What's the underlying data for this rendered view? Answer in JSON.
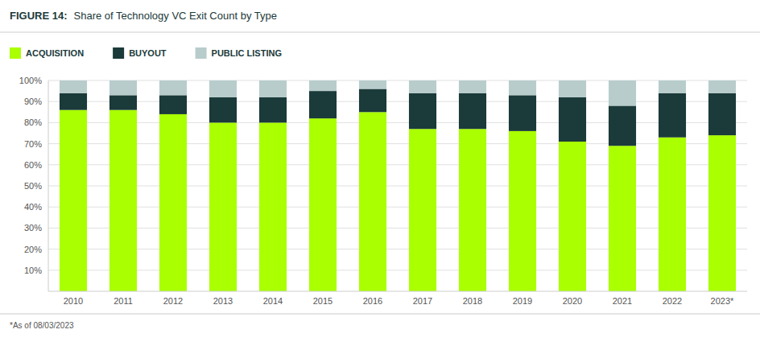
{
  "chart_data": {
    "type": "bar",
    "stacked": true,
    "title": "FIGURE 14:",
    "subtitle": "Share of Technology VC Exit Count by Type",
    "annotations": [
      "*As of 08/03/2023"
    ],
    "categories": [
      "2010",
      "2011",
      "2012",
      "2013",
      "2014",
      "2015",
      "2016",
      "2017",
      "2018",
      "2019",
      "2020",
      "2021",
      "2022",
      "2023*"
    ],
    "series": [
      {
        "name": "ACQUISITION",
        "color": "#aaff00",
        "values": [
          86,
          86,
          84,
          80,
          80,
          82,
          85,
          77,
          77,
          76,
          71,
          69,
          73,
          74
        ]
      },
      {
        "name": "BUYOUT",
        "color": "#1b3a3a",
        "values": [
          8,
          7,
          9,
          12,
          12,
          13,
          11,
          17,
          17,
          17,
          21,
          19,
          21,
          20
        ]
      },
      {
        "name": "PUBLIC LISTING",
        "color": "#b8cccc",
        "values": [
          6,
          7,
          7,
          8,
          8,
          5,
          4,
          6,
          6,
          7,
          8,
          12,
          6,
          6
        ]
      }
    ],
    "ylim": [
      0,
      100
    ],
    "yticks": [
      {
        "value": 10,
        "label": "10%"
      },
      {
        "value": 20,
        "label": "20%"
      },
      {
        "value": 30,
        "label": "30%"
      },
      {
        "value": 40,
        "label": "40%"
      },
      {
        "value": 50,
        "label": "50%"
      },
      {
        "value": 60,
        "label": "60%"
      },
      {
        "value": 70,
        "label": "70%"
      },
      {
        "value": 80,
        "label": "80%"
      },
      {
        "value": 90,
        "label": "90%"
      },
      {
        "value": 100,
        "label": "100%"
      }
    ],
    "grid": true,
    "legend": "top"
  }
}
